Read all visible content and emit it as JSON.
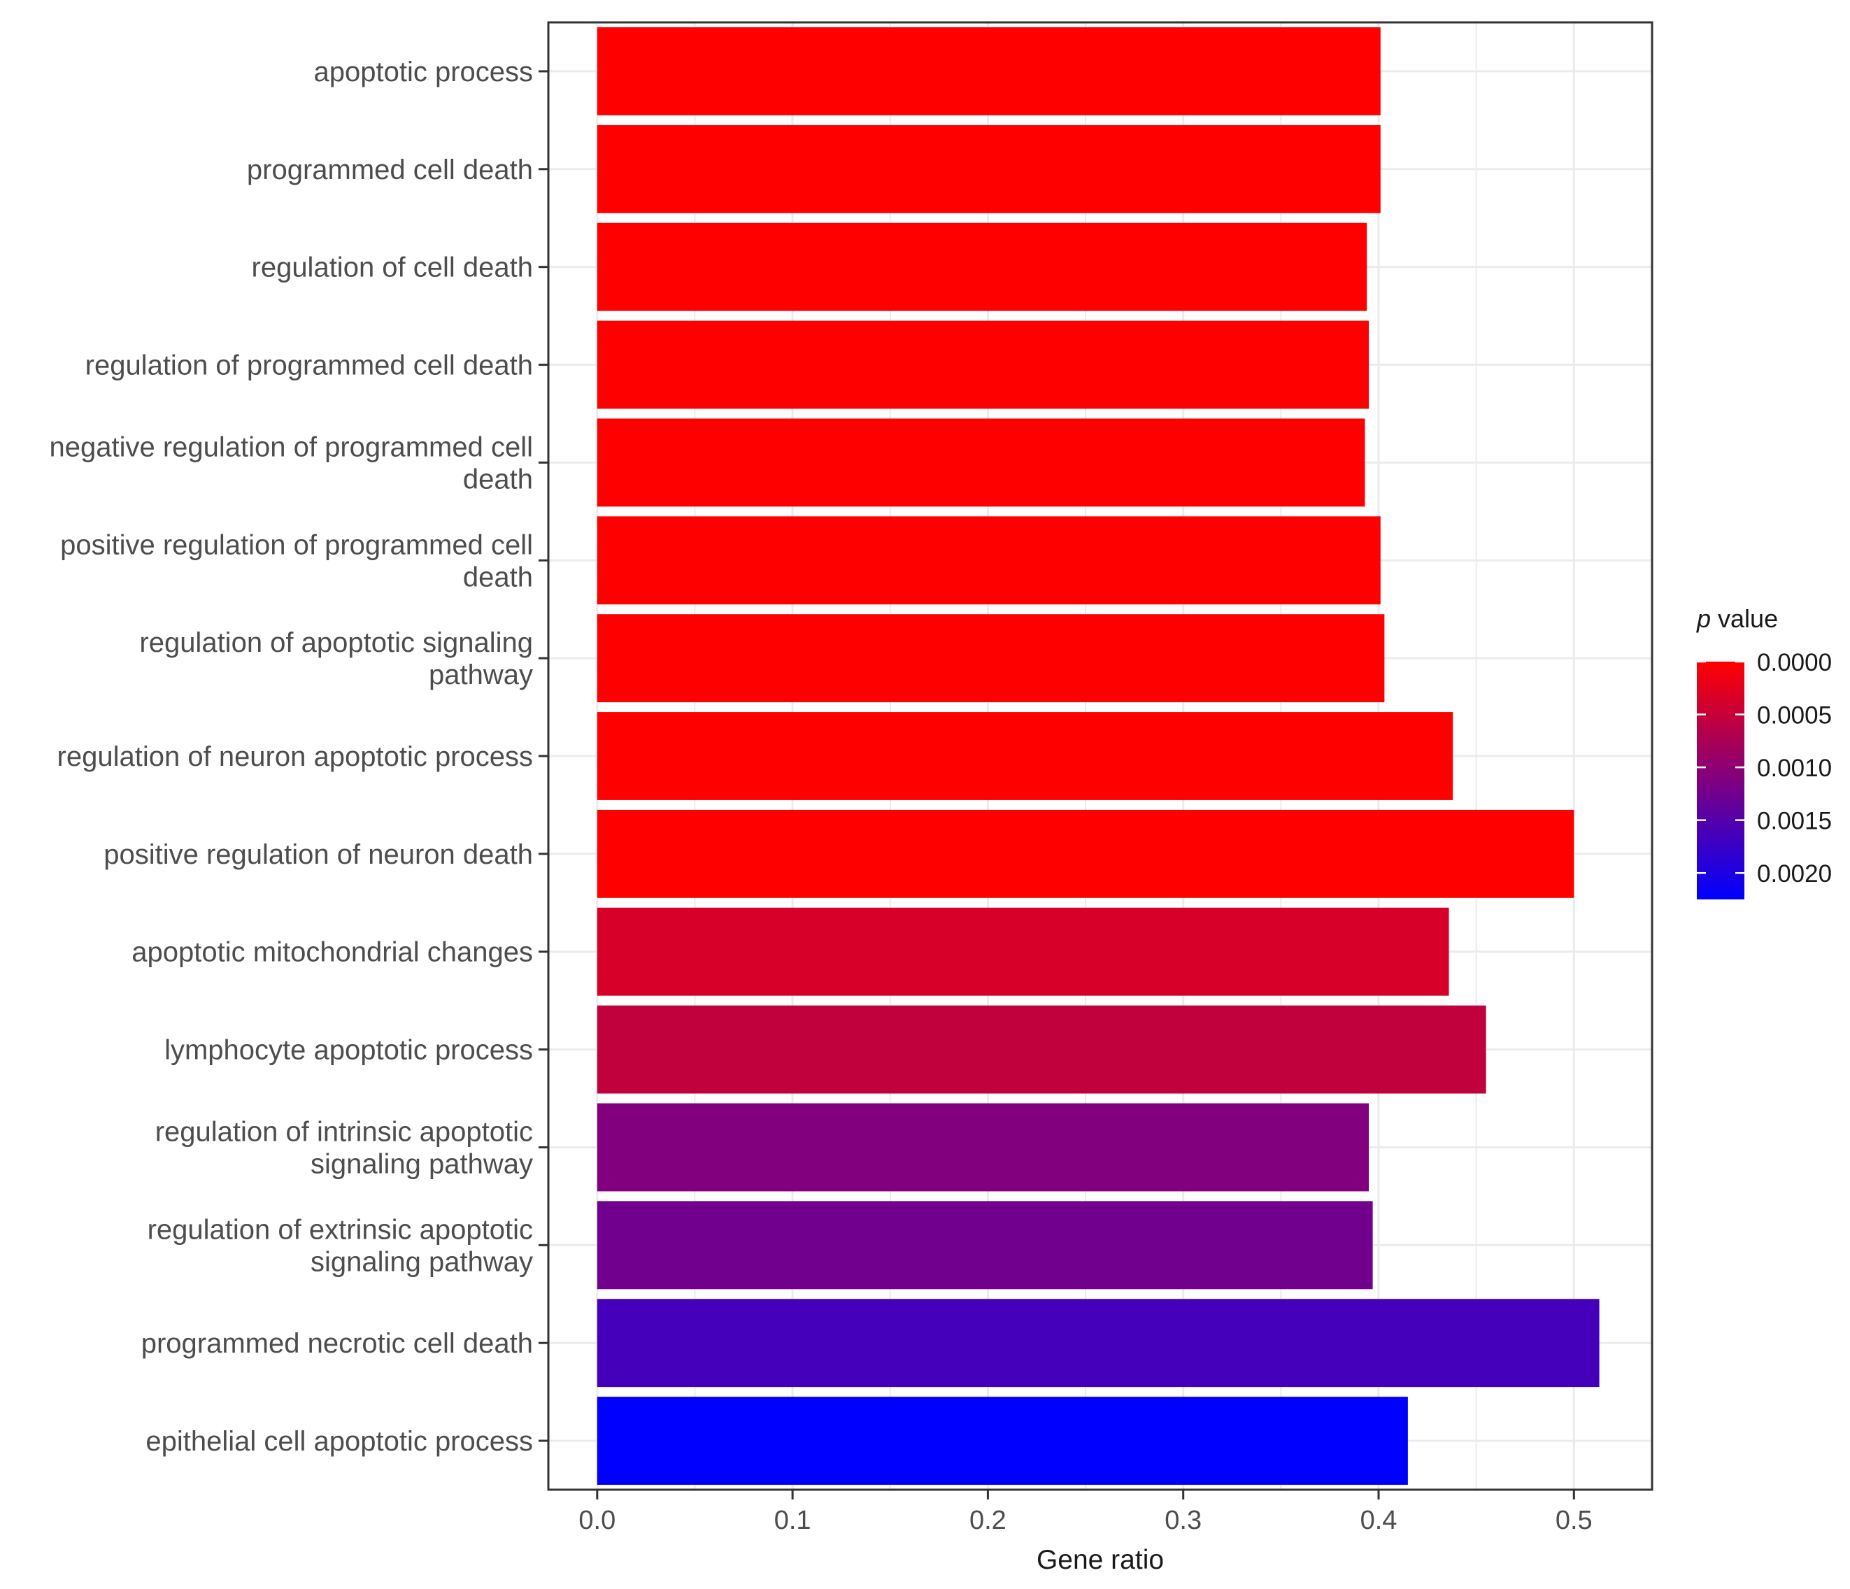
{
  "chart_data": {
    "type": "bar",
    "orientation": "horizontal",
    "xlabel": "Gene ratio",
    "ylabel": "",
    "xlim": [
      -0.025,
      0.54
    ],
    "xticks": [
      0.0,
      0.1,
      0.2,
      0.3,
      0.4,
      0.5
    ],
    "xtick_labels": [
      "0.0",
      "0.1",
      "0.2",
      "0.3",
      "0.4",
      "0.5"
    ],
    "grid": true,
    "categories": [
      [
        "apoptotic process"
      ],
      [
        "programmed cell death"
      ],
      [
        "regulation of cell death"
      ],
      [
        "regulation of programmed cell death"
      ],
      [
        "negative regulation of programmed cell",
        "death"
      ],
      [
        "positive regulation of programmed cell",
        "death"
      ],
      [
        "regulation of apoptotic signaling",
        "pathway"
      ],
      [
        "regulation of neuron apoptotic process"
      ],
      [
        "positive regulation of neuron death"
      ],
      [
        "apoptotic mitochondrial changes"
      ],
      [
        "lymphocyte apoptotic process"
      ],
      [
        "regulation of intrinsic apoptotic",
        "signaling pathway"
      ],
      [
        "regulation of extrinsic apoptotic",
        "signaling pathway"
      ],
      [
        "programmed necrotic cell death"
      ],
      [
        "epithelial cell apoptotic process"
      ]
    ],
    "values": [
      0.401,
      0.401,
      0.394,
      0.395,
      0.393,
      0.401,
      0.403,
      0.438,
      0.5,
      0.436,
      0.455,
      0.395,
      0.397,
      0.513,
      0.415
    ],
    "p_values": [
      0.0,
      0.0,
      0.0,
      0.0,
      0.0,
      0.0,
      0.0,
      0.0,
      0.0,
      0.00035,
      0.00055,
      0.0011,
      0.00125,
      0.00165,
      0.00225
    ],
    "legend": {
      "title_italic": "p",
      "title_rest": " value",
      "labels": [
        "0.0000",
        "0.0005",
        "0.0010",
        "0.0015",
        "0.0020"
      ],
      "ticks": [
        0.0,
        0.0005,
        0.001,
        0.0015,
        0.002
      ],
      "range": [
        0.0,
        0.00225
      ],
      "position": "right"
    },
    "colors": {
      "low": "#FF0000",
      "high": "#0000FF",
      "grid": "#EBEBEB",
      "border": "#333333",
      "axis_text": "#4D4D4D",
      "text": "#1A1A1A"
    }
  }
}
